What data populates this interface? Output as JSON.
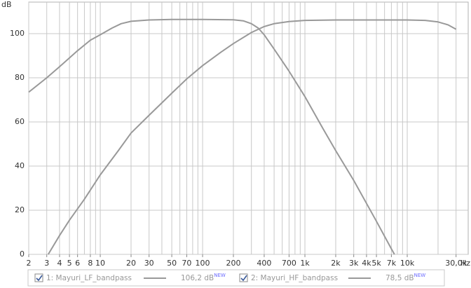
{
  "chart_data": {
    "type": "line",
    "x_label": "Hz",
    "y_label": "dB",
    "x_scale": "log",
    "xlim": [
      2,
      37600
    ],
    "ylim": [
      0,
      110
    ],
    "xticks": [
      2,
      3,
      4,
      5,
      6,
      8,
      10,
      20,
      30,
      50,
      70,
      100,
      200,
      400,
      700,
      {
        "value": 1000,
        "label": "1k"
      },
      {
        "value": 2000,
        "label": "2k"
      },
      {
        "value": 3000,
        "label": "3k"
      },
      {
        "value": 4000,
        "label": "4k"
      },
      {
        "value": 5000,
        "label": "5k"
      },
      {
        "value": 7000,
        "label": "7k"
      },
      {
        "value": 10000,
        "label": "10k"
      },
      {
        "value": 30000,
        "label": "30,0k"
      }
    ],
    "xgrid": [
      2,
      3,
      4,
      5,
      6,
      7,
      8,
      9,
      10,
      20,
      30,
      40,
      50,
      60,
      70,
      80,
      90,
      100,
      200,
      300,
      400,
      500,
      600,
      700,
      800,
      900,
      1000,
      2000,
      3000,
      4000,
      5000,
      6000,
      7000,
      8000,
      9000,
      10000,
      20000,
      30000
    ],
    "yticks": [
      0,
      20,
      40,
      60,
      80,
      100
    ],
    "grid": true,
    "grid_color": "#c8c8c8",
    "series": [
      {
        "name": "1: Mayuri_LF_bandpass",
        "color": "#999999",
        "legend_value": "106,2 dB",
        "legend_badge": "NEW",
        "checked": true,
        "x": [
          2,
          3,
          4,
          5,
          6,
          8,
          10,
          13,
          16,
          20,
          30,
          50,
          100,
          200,
          250,
          300,
          350,
          400,
          500,
          700,
          1000,
          1500,
          2000,
          3000,
          5000,
          7000,
          7500
        ],
        "values": [
          73.5,
          80,
          85,
          89,
          92.3,
          97,
          99.5,
          102.5,
          104.5,
          105.6,
          106.2,
          106.4,
          106.4,
          106.3,
          105.8,
          104.5,
          102.5,
          99.5,
          93,
          83,
          71.5,
          57,
          47,
          33.5,
          15,
          2.5,
          0
        ]
      },
      {
        "name": "2: Mayuri_HF_bandpass",
        "color": "#999999",
        "legend_value": "78,5 dB",
        "legend_badge": "NEW",
        "checked": true,
        "x": [
          3.1,
          4,
          5,
          7,
          10,
          15,
          20,
          30,
          50,
          70,
          100,
          150,
          200,
          300,
          400,
          500,
          700,
          1000,
          2000,
          10000,
          15000,
          20000,
          25000,
          30000
        ],
        "values": [
          0,
          8.5,
          15.5,
          25,
          36,
          47,
          55,
          63,
          73,
          79.5,
          85.5,
          91.5,
          95.5,
          100.5,
          103.2,
          104.5,
          105.5,
          106,
          106.2,
          106.2,
          106,
          105.3,
          104,
          102
        ]
      }
    ]
  }
}
